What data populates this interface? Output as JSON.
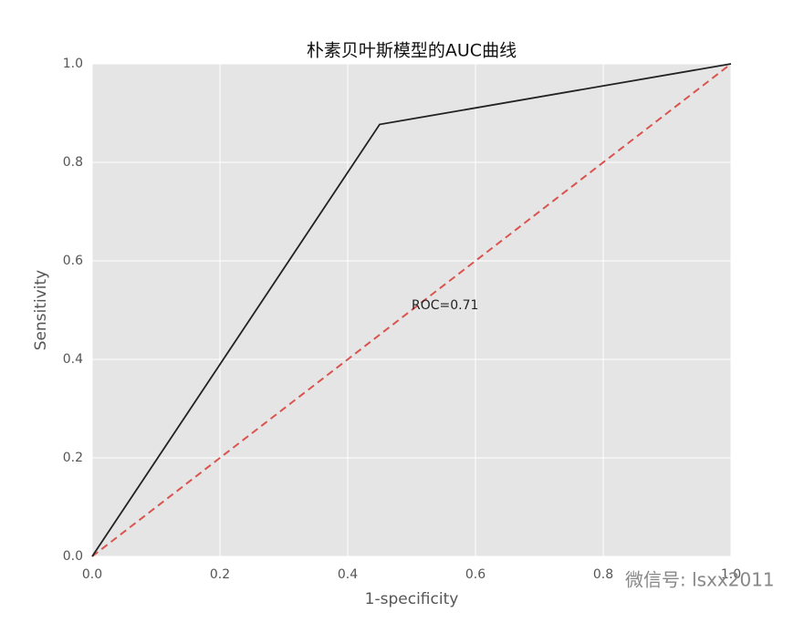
{
  "chart_data": {
    "type": "line",
    "title": "朴素贝叶斯模型的AUC曲线",
    "x_label": "1-specificity",
    "y_label": "Sensitivity",
    "x": [
      0,
      0.45,
      1
    ],
    "series": [
      {
        "color": "#222222",
        "line_style": "solid",
        "values": [
          0,
          0.877,
          1
        ]
      },
      {
        "color": "#d9534f",
        "line_style": "dashed",
        "values": [
          0,
          0.45,
          1
        ]
      }
    ],
    "annotation": "ROC=0.71",
    "watermark": "微信号: lsxx2011",
    "xlim": [
      0,
      1
    ],
    "ylim": [
      0,
      1
    ],
    "xticks": [
      {
        "value": 0,
        "label": "0.0"
      },
      {
        "value": 0.2,
        "label": "0.2"
      },
      {
        "value": 0.4,
        "label": "0.4"
      },
      {
        "value": 0.6,
        "label": "0.6"
      },
      {
        "value": 0.8,
        "label": "0.8"
      },
      {
        "value": 1,
        "label": "1.0"
      }
    ],
    "yticks": [
      {
        "value": 0,
        "label": "0.0"
      },
      {
        "value": 0.2,
        "label": "0.2"
      },
      {
        "value": 0.4,
        "label": "0.4"
      },
      {
        "value": 0.6,
        "label": "0.6"
      },
      {
        "value": 0.8,
        "label": "0.8"
      },
      {
        "value": 1,
        "label": "1.0"
      }
    ],
    "grid": true
  }
}
